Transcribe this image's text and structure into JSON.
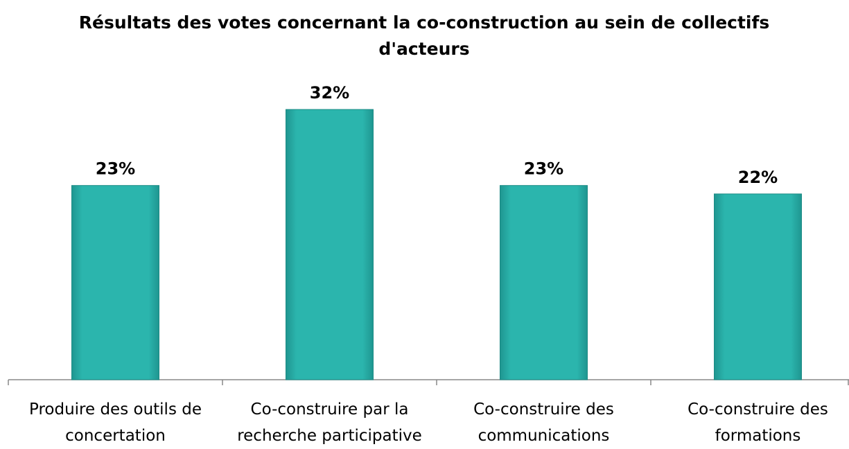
{
  "chart_data": {
    "type": "bar",
    "title": "Résultats des votes concernant la co-construction au sein de collectifs d'acteurs",
    "categories": [
      "Produire des outils de concertation",
      "Co-construire par la recherche participative",
      "Co-construire des communications",
      "Co-construire des formations"
    ],
    "values": [
      23,
      32,
      23,
      22
    ],
    "value_labels": [
      "23%",
      "32%",
      "23%",
      "22%"
    ],
    "color": "#2bb5ad"
  }
}
